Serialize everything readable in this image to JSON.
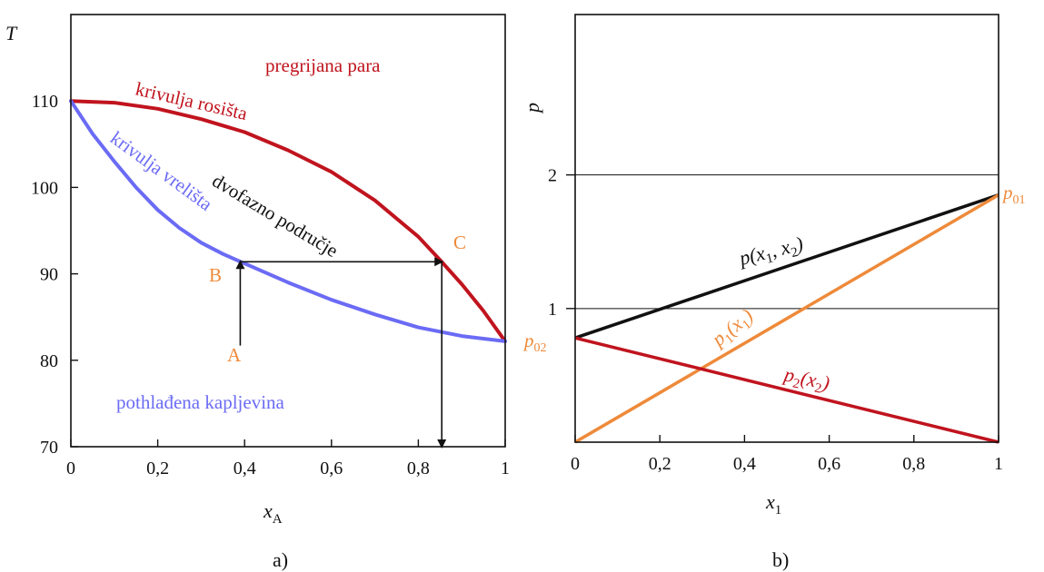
{
  "chart_data": [
    {
      "type": "line",
      "panel_caption": "a)",
      "xlabel": "x",
      "xlabel_sub": "A",
      "ylabel": "T",
      "xlim": [
        0,
        1
      ],
      "ylim": [
        70,
        120
      ],
      "xticks": [
        0,
        0.2,
        0.4,
        0.6,
        0.8,
        1
      ],
      "xtick_labels": [
        "0",
        "0,2",
        "0,4",
        "0,6",
        "0,8",
        "1"
      ],
      "yticks": [
        70,
        80,
        90,
        100,
        110
      ],
      "ytick_labels": [
        "70",
        "80",
        "90",
        "100",
        "110"
      ],
      "grid": false,
      "series": [
        {
          "name": "krivulja rosišta",
          "color": "#c0141e",
          "points": [
            [
              0,
              110
            ],
            [
              0.1,
              109.8
            ],
            [
              0.2,
              109.1
            ],
            [
              0.3,
              107.9
            ],
            [
              0.4,
              106.4
            ],
            [
              0.5,
              104.3
            ],
            [
              0.6,
              101.8
            ],
            [
              0.7,
              98.5
            ],
            [
              0.8,
              94.3
            ],
            [
              0.85,
              91.6
            ],
            [
              0.9,
              88.8
            ],
            [
              0.95,
              85.7
            ],
            [
              1,
              82.2
            ]
          ]
        },
        {
          "name": "krivulja vrelišta",
          "color": "#6b6bf5",
          "points": [
            [
              0,
              110
            ],
            [
              0.05,
              106.2
            ],
            [
              0.1,
              103.0
            ],
            [
              0.15,
              100.0
            ],
            [
              0.2,
              97.4
            ],
            [
              0.25,
              95.3
            ],
            [
              0.3,
              93.6
            ],
            [
              0.35,
              92.3
            ],
            [
              0.4,
              91.2
            ],
            [
              0.5,
              89.0
            ],
            [
              0.6,
              87.0
            ],
            [
              0.7,
              85.3
            ],
            [
              0.8,
              83.8
            ],
            [
              0.9,
              82.8
            ],
            [
              1,
              82.2
            ]
          ]
        }
      ],
      "arrows": [
        {
          "from": [
            0.39,
            81.7
          ],
          "to": [
            0.39,
            91.4
          ],
          "color": "#111111"
        },
        {
          "from": [
            0.39,
            91.4
          ],
          "to": [
            0.854,
            91.4
          ],
          "color": "#111111"
        },
        {
          "from": [
            0.854,
            91.4
          ],
          "to": [
            0.854,
            70
          ],
          "color": "#111111"
        }
      ],
      "annotations": [
        {
          "text": "pregrijana para",
          "color": "#c0141e"
        },
        {
          "text": "krivulja rosišta",
          "color": "#c0141e"
        },
        {
          "text": "krivulja vrelišta",
          "color": "#6b6bf5"
        },
        {
          "text": "dvofazno područje",
          "color": "#111111"
        },
        {
          "text": "pothlađena kapljevina",
          "color": "#6b6bf5"
        },
        {
          "text": "A",
          "color": "#ee8a3a"
        },
        {
          "text": "B",
          "color": "#ee8a3a"
        },
        {
          "text": "C",
          "color": "#ee8a3a"
        }
      ]
    },
    {
      "type": "line",
      "panel_caption": "b)",
      "xlabel": "x",
      "xlabel_sub": "1",
      "ylabel": "p",
      "xlim": [
        0,
        1
      ],
      "ylim": [
        0,
        3.2
      ],
      "xticks": [
        0,
        0.2,
        0.4,
        0.6,
        0.8,
        1
      ],
      "xtick_labels": [
        "0",
        "0,2",
        "0,4",
        "0,6",
        "0,8",
        "1"
      ],
      "yticks": [
        1,
        2
      ],
      "ytick_labels": [
        "1",
        "2"
      ],
      "grid": true,
      "series": [
        {
          "name": "p(x1, x2)",
          "color": "#111111",
          "x": [
            0,
            1
          ],
          "y": [
            0.78,
            1.85
          ]
        },
        {
          "name": "p1(x1)",
          "color": "#ee8a3a",
          "x": [
            0,
            1
          ],
          "y": [
            0,
            1.85
          ]
        },
        {
          "name": "p2(x2)",
          "color": "#c0141e",
          "x": [
            0,
            1
          ],
          "y": [
            0.78,
            0
          ]
        }
      ],
      "annotations": [
        {
          "text": "p01",
          "color": "#ee8a3a"
        },
        {
          "text": "p02",
          "color": "#ee8a3a"
        }
      ]
    }
  ]
}
